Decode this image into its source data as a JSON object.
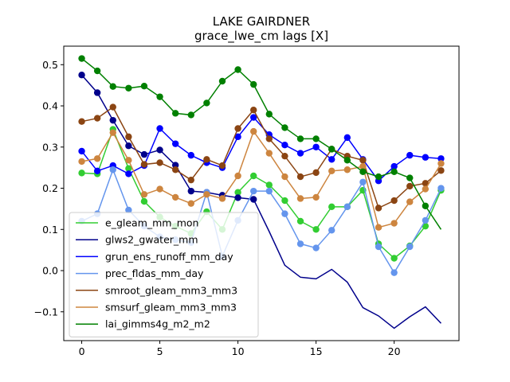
{
  "chart_data": {
    "type": "line",
    "title": "LAKE GAIRDNER",
    "subtitle": "grace_lwe_cm lags [X]",
    "xlabel": "",
    "ylabel": "",
    "xlim": [
      -1.15,
      24.15
    ],
    "ylim": [
      -0.17,
      0.545
    ],
    "xticks": [
      0,
      5,
      10,
      15,
      20
    ],
    "yticks": [
      -0.1,
      0.0,
      0.1,
      0.2,
      0.3,
      0.4,
      0.5
    ],
    "ytick_labels": [
      "−0.1",
      "0.0",
      "0.1",
      "0.2",
      "0.3",
      "0.4",
      "0.5"
    ],
    "grid": false,
    "legend_position": "lower-left",
    "x": [
      0,
      1,
      2,
      3,
      4,
      5,
      6,
      7,
      8,
      9,
      10,
      11,
      12,
      13,
      14,
      15,
      16,
      17,
      18,
      19,
      20,
      21,
      22,
      23
    ],
    "series": [
      {
        "name": "e_gleam_mm_mon",
        "color": "#32cd32",
        "markers": "all",
        "values": [
          0.237,
          0.235,
          0.343,
          0.248,
          0.168,
          0.13,
          0.108,
          0.09,
          0.143,
          0.1,
          0.19,
          0.23,
          0.208,
          0.17,
          0.12,
          0.1,
          0.155,
          0.155,
          0.195,
          0.065,
          0.03,
          0.06,
          0.108,
          0.195
        ]
      },
      {
        "name": "glws2_gwater_mm",
        "color": "#00008b",
        "markers": [
          0,
          1,
          2,
          3,
          4,
          5,
          6,
          7,
          8,
          9,
          10,
          11
        ],
        "values": [
          0.475,
          0.432,
          0.365,
          0.303,
          0.282,
          0.293,
          0.256,
          0.193,
          0.19,
          0.183,
          0.177,
          0.173,
          0.095,
          0.013,
          -0.016,
          -0.02,
          0.003,
          -0.028,
          -0.09,
          -0.11,
          -0.14,
          -0.112,
          -0.088,
          -0.128
        ]
      },
      {
        "name": "grun_ens_runoff_mm_day",
        "color": "#0000ff",
        "markers": "all",
        "values": [
          0.29,
          0.242,
          0.255,
          0.235,
          0.255,
          0.345,
          0.308,
          0.28,
          0.262,
          0.25,
          0.325,
          0.372,
          0.33,
          0.305,
          0.285,
          0.3,
          0.27,
          0.323,
          0.27,
          0.218,
          0.253,
          0.28,
          0.275,
          0.272
        ]
      },
      {
        "name": "prec_fldas_mm_day",
        "color": "#6495ed",
        "markers": "all",
        "values": [
          0.12,
          0.138,
          0.245,
          0.147,
          0.108,
          0.082,
          0.075,
          0.068,
          0.19,
          0.035,
          0.122,
          0.193,
          0.193,
          0.138,
          0.065,
          0.055,
          0.098,
          0.155,
          0.215,
          0.058,
          -0.005,
          0.058,
          0.122,
          0.2
        ]
      },
      {
        "name": "smroot_gleam_mm3_mm3",
        "color": "#8b4513",
        "markers": "all",
        "values": [
          0.362,
          0.37,
          0.397,
          0.325,
          0.258,
          0.262,
          0.245,
          0.22,
          0.27,
          0.255,
          0.345,
          0.39,
          0.32,
          0.278,
          0.228,
          0.238,
          0.295,
          0.278,
          0.268,
          0.152,
          0.17,
          0.205,
          0.212,
          0.243
        ]
      },
      {
        "name": "smsurf_gleam_mm3_mm3",
        "color": "#cd853f",
        "markers": "all",
        "values": [
          0.265,
          0.272,
          0.335,
          0.268,
          0.185,
          0.198,
          0.178,
          0.163,
          0.185,
          0.175,
          0.23,
          0.338,
          0.285,
          0.228,
          0.175,
          0.178,
          0.242,
          0.245,
          0.253,
          0.105,
          0.115,
          0.167,
          0.198,
          0.26
        ]
      },
      {
        "name": "lai_gimms4g_m2_m2",
        "color": "#008000",
        "markers": [
          0,
          1,
          2,
          3,
          4,
          5,
          6,
          7,
          8,
          9,
          10,
          11,
          12,
          13,
          14,
          15,
          16,
          17,
          18,
          19,
          20,
          21,
          22
        ],
        "values": [
          0.515,
          0.485,
          0.447,
          0.443,
          0.448,
          0.422,
          0.382,
          0.378,
          0.407,
          0.46,
          0.488,
          0.452,
          0.38,
          0.347,
          0.32,
          0.32,
          0.295,
          0.268,
          0.24,
          0.228,
          0.24,
          0.225,
          0.157,
          0.1
        ]
      }
    ]
  }
}
